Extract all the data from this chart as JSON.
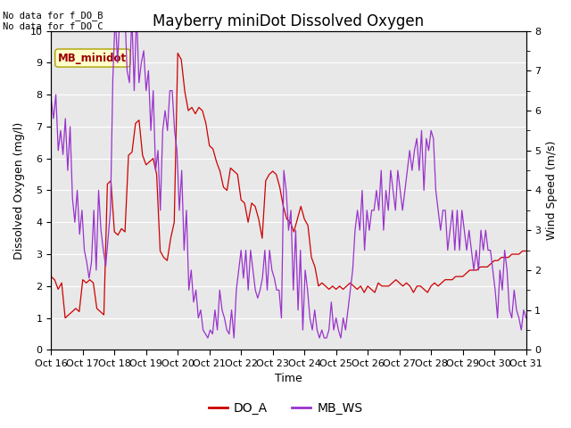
{
  "title": "Mayberry miniDot Dissolved Oxygen",
  "xlabel": "Time",
  "ylabel_left": "Dissolved Oxygen (mg/l)",
  "ylabel_right": "Wind Speed (m/s)",
  "ylim_left": [
    0.0,
    10.0
  ],
  "ylim_right": [
    0.0,
    8.0
  ],
  "yticks_left": [
    0.0,
    1.0,
    2.0,
    3.0,
    4.0,
    5.0,
    6.0,
    7.0,
    8.0,
    9.0,
    10.0
  ],
  "yticks_right": [
    0.0,
    1.0,
    2.0,
    3.0,
    4.0,
    5.0,
    6.0,
    7.0,
    8.0
  ],
  "xtick_labels": [
    "Oct 16",
    "Oct 17",
    "Oct 18",
    "Oct 19",
    "Oct 20",
    "Oct 21",
    "Oct 22",
    "Oct 23",
    "Oct 24",
    "Oct 25",
    "Oct 26",
    "Oct 27",
    "Oct 28",
    "Oct 29",
    "Oct 30",
    "Oct 31"
  ],
  "no_data_text_1": "No data for f_DO_B",
  "no_data_text_2": "No data for f_DO_C",
  "legend_label_box": "MB_minidot",
  "legend_entries": [
    "DO_A",
    "MB_WS"
  ],
  "line_color_DO_A": "#cc0000",
  "line_color_MB_WS": "#9933cc",
  "bg_color": "#e8e8e8",
  "fig_bg": "#ffffff",
  "grid_color": "#ffffff",
  "title_fontsize": 12,
  "axis_fontsize": 9,
  "tick_fontsize": 8,
  "DO_A": [
    2.3,
    2.2,
    1.9,
    2.1,
    1.0,
    1.1,
    1.2,
    1.3,
    1.2,
    2.2,
    2.1,
    2.2,
    2.1,
    1.3,
    1.2,
    1.1,
    5.2,
    5.3,
    3.7,
    3.6,
    3.8,
    3.7,
    6.1,
    6.2,
    7.1,
    7.2,
    6.1,
    5.8,
    5.9,
    6.0,
    5.5,
    3.1,
    2.9,
    2.8,
    3.5,
    4.0,
    9.3,
    9.1,
    8.1,
    7.5,
    7.6,
    7.4,
    7.6,
    7.5,
    7.1,
    6.4,
    6.3,
    5.9,
    5.6,
    5.1,
    5.0,
    5.7,
    5.6,
    5.5,
    4.7,
    4.6,
    4.0,
    4.6,
    4.5,
    4.1,
    3.5,
    5.3,
    5.5,
    5.6,
    5.5,
    5.1,
    4.5,
    4.1,
    4.0,
    3.7,
    4.1,
    4.5,
    4.1,
    3.9,
    2.9,
    2.6,
    2.0,
    2.1,
    2.0,
    1.9,
    2.0,
    1.9,
    2.0,
    1.9,
    2.0,
    2.1,
    2.0,
    1.9,
    2.0,
    1.8,
    2.0,
    1.9,
    1.8,
    2.1,
    2.0,
    2.0,
    2.0,
    2.1,
    2.2,
    2.1,
    2.0,
    2.1,
    2.0,
    1.8,
    2.0,
    2.0,
    1.9,
    1.8,
    2.0,
    2.1,
    2.0,
    2.1,
    2.2,
    2.2,
    2.2,
    2.3,
    2.3,
    2.3,
    2.4,
    2.5,
    2.5,
    2.5,
    2.6,
    2.6,
    2.6,
    2.7,
    2.8,
    2.8,
    2.9,
    2.9,
    2.9,
    3.0,
    3.0,
    3.0,
    3.1,
    3.1
  ],
  "MB_WS": [
    6.3,
    5.8,
    6.4,
    5.0,
    5.5,
    4.9,
    5.8,
    4.5,
    5.6,
    3.8,
    3.2,
    4.0,
    2.9,
    3.5,
    2.5,
    2.2,
    1.8,
    2.2,
    3.5,
    2.0,
    4.0,
    3.0,
    2.5,
    2.1,
    2.8,
    3.5,
    6.8,
    8.4,
    7.2,
    8.5,
    9.1,
    8.6,
    7.0,
    6.7,
    8.4,
    6.5,
    8.5,
    6.7,
    7.2,
    7.5,
    6.5,
    7.0,
    5.5,
    6.5,
    4.5,
    5.0,
    3.5,
    5.5,
    6.0,
    5.5,
    6.5,
    6.5,
    5.5,
    5.0,
    3.5,
    4.5,
    2.5,
    3.5,
    1.5,
    2.0,
    1.2,
    1.5,
    0.8,
    1.0,
    0.5,
    0.4,
    0.3,
    0.5,
    0.4,
    1.0,
    0.5,
    1.5,
    1.0,
    0.8,
    0.5,
    0.4,
    1.0,
    0.3,
    1.5,
    2.0,
    2.5,
    1.8,
    2.5,
    1.5,
    2.5,
    2.0,
    1.5,
    1.3,
    1.5,
    1.8,
    2.5,
    1.5,
    2.5,
    2.0,
    1.8,
    1.5,
    1.5,
    0.8,
    4.5,
    4.0,
    3.0,
    3.5,
    1.5,
    3.0,
    1.0,
    2.5,
    0.5,
    2.0,
    1.5,
    0.8,
    0.5,
    1.0,
    0.5,
    0.3,
    0.5,
    0.3,
    0.3,
    0.5,
    1.2,
    0.5,
    0.8,
    0.5,
    0.3,
    0.8,
    0.5,
    1.0,
    1.5,
    2.0,
    3.0,
    3.5,
    3.0,
    4.0,
    2.5,
    3.5,
    3.0,
    3.5,
    3.5,
    4.0,
    3.5,
    4.5,
    3.0,
    4.0,
    3.5,
    4.5,
    4.0,
    3.5,
    4.5,
    4.0,
    3.5,
    4.0,
    4.5,
    5.0,
    4.5,
    5.0,
    5.3,
    4.5,
    5.5,
    4.0,
    5.3,
    5.0,
    5.5,
    5.3,
    4.0,
    3.5,
    3.0,
    3.5,
    3.5,
    2.5,
    3.0,
    3.5,
    2.5,
    3.5,
    2.5,
    3.5,
    3.0,
    2.5,
    3.0,
    2.5,
    2.0,
    2.5,
    2.0,
    3.0,
    2.5,
    3.0,
    2.5,
    2.5,
    2.0,
    1.5,
    0.8,
    2.0,
    1.5,
    2.5,
    2.0,
    1.0,
    0.8,
    1.5,
    1.0,
    0.8,
    0.5,
    1.0,
    0.8
  ]
}
